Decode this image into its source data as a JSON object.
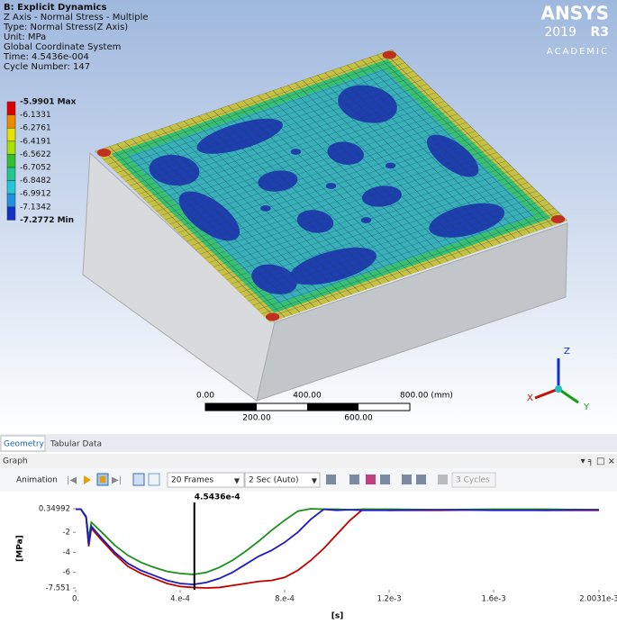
{
  "viewport": {
    "header": [
      "B: Explicit Dynamics",
      "Z Axis - Normal Stress - Multiple",
      "Type: Normal Stress(Z Axis)",
      "Unit: MPa",
      "Global Coordinate System",
      "Time: 4.5436e-004",
      "Cycle Number: 147"
    ],
    "logo": {
      "brand": "ANSYS",
      "version": "2019",
      "release": "R3",
      "edition": "ACADEMIC"
    },
    "legend": {
      "labels": [
        "-5.9901 Max",
        "-6.1331",
        "-6.2761",
        "-6.4191",
        "-6.5622",
        "-6.7052",
        "-6.8482",
        "-6.9912",
        "-7.1342",
        "-7.2772 Min"
      ],
      "colors": [
        "#e00000",
        "#f08a00",
        "#e8e000",
        "#a8e000",
        "#30c030",
        "#20c890",
        "#20c8d8",
        "#2090e0",
        "#1030c8"
      ]
    },
    "scale_bar": {
      "top_labels": [
        "0.00",
        "400.00",
        "800.00 (mm)"
      ],
      "bottom_labels": [
        "200.00",
        "600.00"
      ]
    },
    "triad": {
      "z": "Z",
      "x": "X",
      "y": "Y"
    }
  },
  "tabs": [
    "Geometry",
    "Tabular Data"
  ],
  "graph_panel": {
    "title": "Graph",
    "toolbar": {
      "animation": "Animation",
      "frames": "20 Frames",
      "duration": "2 Sec (Auto)",
      "cycles": "3 Cycles"
    }
  },
  "chart_data": {
    "type": "line",
    "xlabel": "[s]",
    "ylabel": "[MPa]",
    "marker": {
      "value": 0.00045436,
      "label": "4.5436e-4"
    },
    "x": [
      0,
      2e-05,
      4e-05,
      5e-05,
      6e-05,
      8e-05,
      0.0001,
      0.00015,
      0.0002,
      0.00025,
      0.0003,
      0.00035,
      0.0004,
      0.00045,
      0.0005,
      0.00055,
      0.0006,
      0.00065,
      0.0007,
      0.00075,
      0.0008,
      0.00085,
      0.0009,
      0.00095,
      0.001,
      0.00105,
      0.0011,
      0.0012,
      0.0014,
      0.0016,
      0.0018,
      0.0020031
    ],
    "series": [
      {
        "color": "#c00000",
        "values": [
          0.3,
          0.3,
          -0.5,
          -3.4,
          -1.6,
          -2.2,
          -2.8,
          -4.2,
          -5.4,
          -6.1,
          -6.6,
          -7.1,
          -7.4,
          -7.5,
          -7.55,
          -7.5,
          -7.3,
          -7.1,
          -6.9,
          -6.8,
          -6.5,
          -5.8,
          -4.8,
          -3.6,
          -2.2,
          -0.8,
          0.3,
          0.2,
          0.2,
          0.25,
          0.2,
          0.2
        ]
      },
      {
        "color": "#1a8f1a",
        "values": [
          0.3,
          0.3,
          -0.4,
          -2.6,
          -1,
          -1.5,
          -2,
          -3.3,
          -4.3,
          -5,
          -5.5,
          -5.9,
          -6.1,
          -6.2,
          -6,
          -5.5,
          -4.8,
          -3.9,
          -2.9,
          -1.8,
          -0.8,
          0.1,
          0.35,
          0.3,
          0.3,
          0.25,
          0.3,
          0.3,
          0.25,
          0.3,
          0.3,
          0.25
        ]
      },
      {
        "color": "#1c1cc0",
        "values": [
          0.3,
          0.3,
          -0.5,
          -3.2,
          -1.4,
          -2,
          -2.6,
          -4,
          -5.1,
          -5.8,
          -6.3,
          -6.8,
          -7.1,
          -7.2,
          -7,
          -6.6,
          -6,
          -5.2,
          -4.4,
          -3.8,
          -3,
          -2,
          -0.7,
          0.3,
          0.2,
          0.25,
          0.2,
          0.2,
          0.25,
          0.2,
          0.2,
          0.25
        ]
      }
    ],
    "xlim": [
      0,
      0.0020031
    ],
    "ylim": [
      -7.551,
      0.34992
    ],
    "xticks": [
      {
        "value": 0,
        "label": "0."
      },
      {
        "value": 0.0004,
        "label": "4.e-4"
      },
      {
        "value": 0.0008,
        "label": "8.e-4"
      },
      {
        "value": 0.0012,
        "label": "1.2e-3"
      },
      {
        "value": 0.0016,
        "label": "1.6e-3"
      },
      {
        "value": 0.0020031,
        "label": "2.0031e-3"
      }
    ],
    "yticks": [
      0.34992,
      -2,
      -4,
      -6,
      -7.551
    ]
  }
}
